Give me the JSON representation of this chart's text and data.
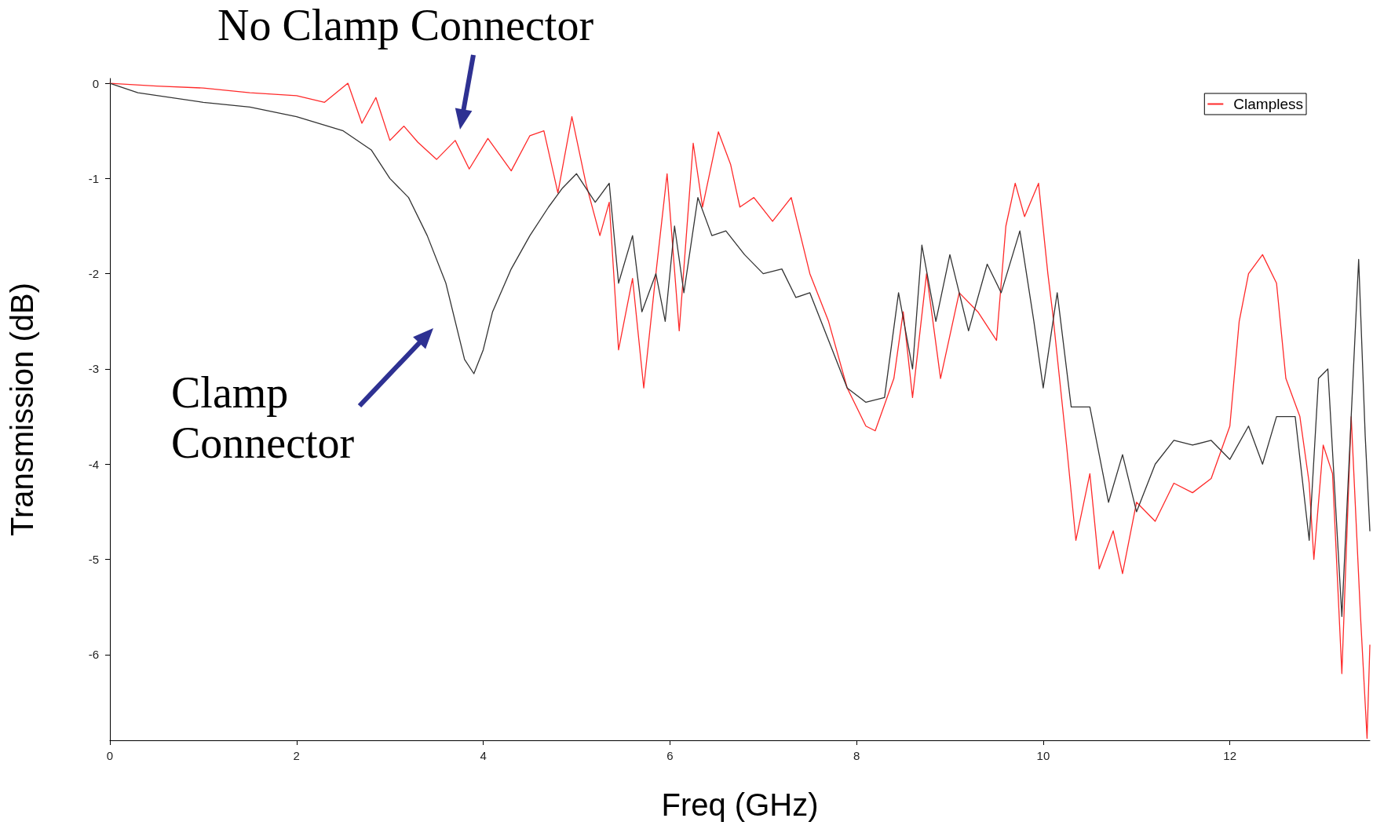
{
  "chart_data": {
    "type": "line",
    "xlabel": "Freq (GHz)",
    "ylabel": "Transmission (dB)",
    "xlim": [
      0,
      13.5
    ],
    "xticks": [
      0,
      2,
      4,
      6,
      8,
      10,
      12
    ],
    "ylim": [
      -6.9,
      0.05
    ],
    "yticks": [
      -6,
      -5,
      -4,
      -3,
      -2,
      -1,
      0
    ],
    "grid": false,
    "legend": "top right",
    "marker": "none",
    "line_style": "solid",
    "annotations": [
      "No Clamp Connector",
      "Clamp\nConnector"
    ],
    "series": [
      {
        "name": "Clampless",
        "color": "#ff2a2a",
        "x": [
          0,
          0.5,
          1,
          1.5,
          2,
          2.3,
          2.55,
          2.7,
          2.85,
          3.0,
          3.15,
          3.3,
          3.5,
          3.7,
          3.85,
          4.05,
          4.3,
          4.5,
          4.65,
          4.8,
          4.95,
          5.1,
          5.25,
          5.35,
          5.45,
          5.6,
          5.72,
          5.85,
          5.97,
          6.1,
          6.25,
          6.35,
          6.52,
          6.65,
          6.75,
          6.9,
          7.1,
          7.3,
          7.5,
          7.7,
          7.9,
          8.1,
          8.2,
          8.4,
          8.5,
          8.6,
          8.75,
          8.9,
          9.1,
          9.3,
          9.5,
          9.6,
          9.7,
          9.8,
          9.95,
          10.05,
          10.1,
          10.25,
          10.35,
          10.5,
          10.6,
          10.75,
          10.85,
          11.0,
          11.2,
          11.4,
          11.6,
          11.8,
          12.0,
          12.1,
          12.2,
          12.35,
          12.5,
          12.6,
          12.75,
          12.85,
          12.9,
          13.0,
          13.1,
          13.2,
          13.3,
          13.4,
          13.47,
          13.5
        ],
        "values": [
          0,
          -0.03,
          -0.05,
          -0.1,
          -0.13,
          -0.2,
          0,
          -0.42,
          -0.15,
          -0.6,
          -0.45,
          -0.62,
          -0.8,
          -0.6,
          -0.9,
          -0.58,
          -0.92,
          -0.55,
          -0.5,
          -1.15,
          -0.35,
          -1.05,
          -1.6,
          -1.25,
          -2.8,
          -2.05,
          -3.2,
          -2.0,
          -0.95,
          -2.6,
          -0.63,
          -1.3,
          -0.51,
          -0.85,
          -1.3,
          -1.2,
          -1.45,
          -1.2,
          -2.0,
          -2.5,
          -3.2,
          -3.6,
          -3.65,
          -3.1,
          -2.4,
          -3.3,
          -2.0,
          -3.1,
          -2.2,
          -2.4,
          -2.7,
          -1.5,
          -1.05,
          -1.4,
          -1.05,
          -2.0,
          -2.4,
          -3.8,
          -4.8,
          -4.1,
          -5.1,
          -4.7,
          -5.15,
          -4.4,
          -4.6,
          -4.2,
          -4.3,
          -4.15,
          -3.6,
          -2.5,
          -2.0,
          -1.8,
          -2.1,
          -3.1,
          -3.5,
          -4.2,
          -5.0,
          -3.8,
          -4.1,
          -6.2,
          -3.5,
          -5.6,
          -6.88,
          -5.9
        ]
      },
      {
        "color": "#333333",
        "x": [
          0,
          0.3,
          1,
          1.5,
          2,
          2.5,
          2.8,
          3.0,
          3.2,
          3.4,
          3.6,
          3.7,
          3.8,
          3.9,
          4.0,
          4.1,
          4.3,
          4.5,
          4.7,
          4.85,
          5.0,
          5.2,
          5.35,
          5.45,
          5.6,
          5.7,
          5.85,
          5.95,
          6.05,
          6.15,
          6.3,
          6.45,
          6.6,
          6.8,
          7.0,
          7.2,
          7.35,
          7.5,
          7.7,
          7.9,
          8.1,
          8.3,
          8.45,
          8.6,
          8.7,
          8.85,
          9.0,
          9.2,
          9.4,
          9.55,
          9.75,
          9.9,
          10.0,
          10.15,
          10.3,
          10.5,
          10.7,
          10.85,
          11.0,
          11.2,
          11.4,
          11.6,
          11.8,
          12.0,
          12.2,
          12.35,
          12.5,
          12.7,
          12.85,
          12.95,
          13.05,
          13.2,
          13.3,
          13.38,
          13.45,
          13.5
        ],
        "values": [
          0,
          -0.1,
          -0.2,
          -0.25,
          -0.35,
          -0.5,
          -0.7,
          -1.0,
          -1.2,
          -1.6,
          -2.1,
          -2.5,
          -2.9,
          -3.05,
          -2.8,
          -2.4,
          -1.95,
          -1.6,
          -1.3,
          -1.1,
          -0.95,
          -1.25,
          -1.05,
          -2.1,
          -1.6,
          -2.4,
          -2.0,
          -2.5,
          -1.5,
          -2.2,
          -1.2,
          -1.6,
          -1.55,
          -1.8,
          -2.0,
          -1.95,
          -2.25,
          -2.2,
          -2.7,
          -3.2,
          -3.35,
          -3.3,
          -2.2,
          -3.0,
          -1.7,
          -2.5,
          -1.8,
          -2.6,
          -1.9,
          -2.2,
          -1.55,
          -2.5,
          -3.2,
          -2.2,
          -3.4,
          -3.4,
          -4.4,
          -3.9,
          -4.5,
          -4.0,
          -3.75,
          -3.8,
          -3.75,
          -3.95,
          -3.6,
          -4.0,
          -3.5,
          -3.5,
          -4.8,
          -3.1,
          -3.0,
          -5.6,
          -3.5,
          -1.85,
          -3.7,
          -4.7
        ]
      }
    ]
  }
}
